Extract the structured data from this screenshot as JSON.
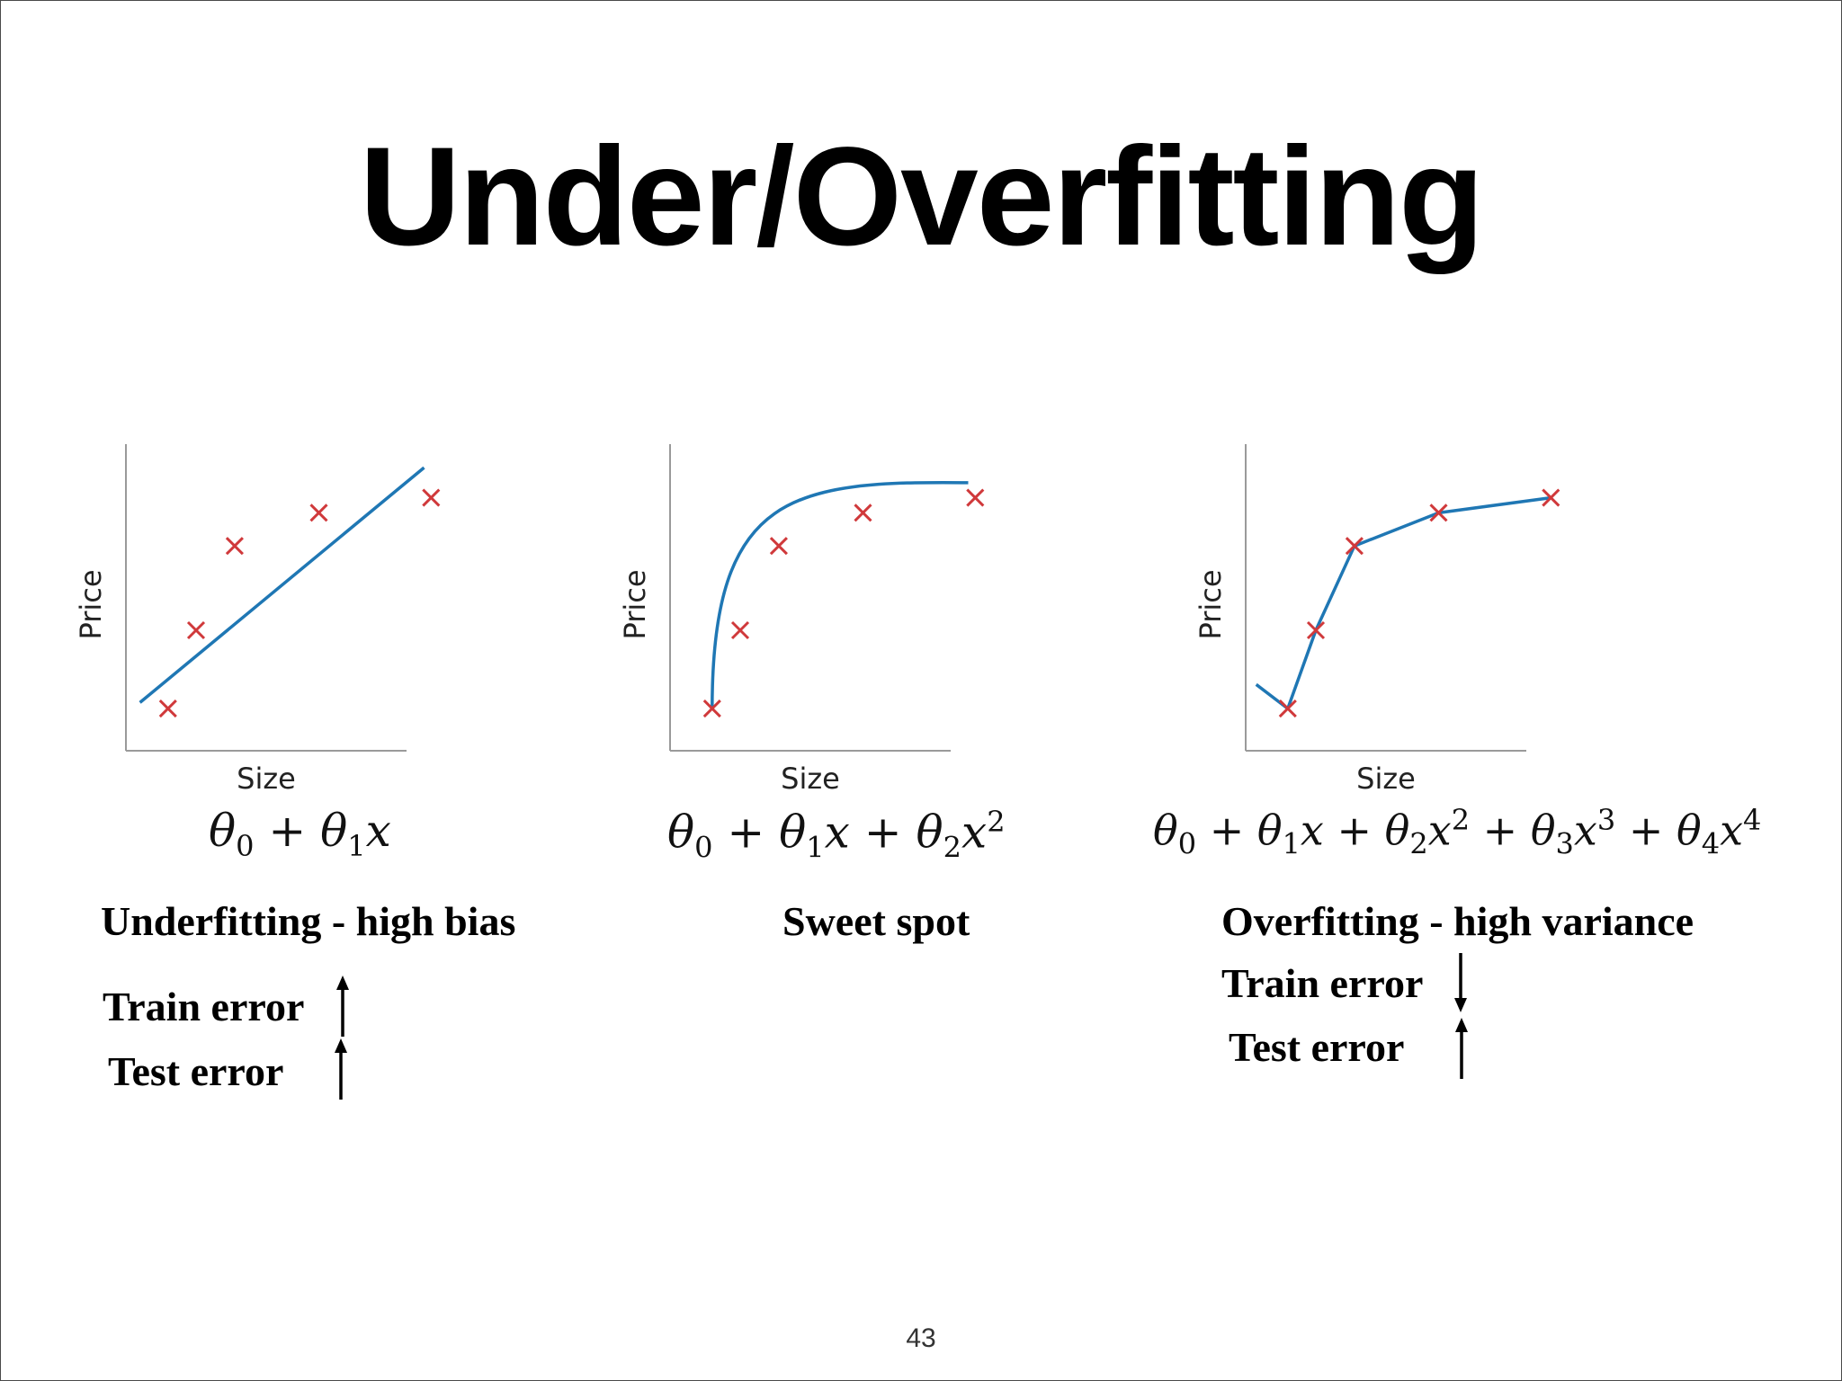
{
  "slide": {
    "title": "Under/Overfitting",
    "page_number": "43"
  },
  "colors": {
    "point": "#d0393b",
    "curve": "#1f77b4",
    "axis": "#9a9a9a"
  },
  "chart_data": [
    {
      "type": "scatter",
      "xlabel": "Size",
      "ylabel": "Price",
      "xlim": [
        0,
        10
      ],
      "ylim": [
        0,
        10
      ],
      "points": [
        [
          1.2,
          1.4
        ],
        [
          2.0,
          4.0
        ],
        [
          3.1,
          6.8
        ],
        [
          5.5,
          7.9
        ],
        [
          8.7,
          8.4
        ]
      ],
      "fit": {
        "kind": "linear",
        "x": [
          0.4,
          8.5
        ],
        "y": [
          1.6,
          9.4
        ]
      },
      "formula": "θ0 + θ1x"
    },
    {
      "type": "scatter",
      "xlabel": "Size",
      "ylabel": "Price",
      "xlim": [
        0,
        10
      ],
      "ylim": [
        0,
        10
      ],
      "points": [
        [
          1.2,
          1.4
        ],
        [
          2.0,
          4.0
        ],
        [
          3.1,
          6.8
        ],
        [
          5.5,
          7.9
        ],
        [
          8.7,
          8.4
        ]
      ],
      "fit": {
        "kind": "quadratic",
        "x": [
          1.2,
          8.5
        ],
        "y": [
          1.4,
          8.9
        ]
      },
      "formula": "θ0 + θ1x + θ2x2"
    },
    {
      "type": "scatter",
      "xlabel": "Size",
      "ylabel": "Price",
      "xlim": [
        0,
        10
      ],
      "ylim": [
        0,
        10
      ],
      "points": [
        [
          1.2,
          1.4
        ],
        [
          2.0,
          4.0
        ],
        [
          3.1,
          6.8
        ],
        [
          5.5,
          7.9
        ],
        [
          8.7,
          8.4
        ]
      ],
      "fit": {
        "kind": "piecewise",
        "x": [
          0.3,
          1.2,
          2.0,
          3.1,
          5.5,
          8.7
        ],
        "y": [
          2.2,
          1.4,
          4.0,
          6.8,
          7.9,
          8.4
        ]
      },
      "formula": "θ0 + θ1x + θ2x2 + θ3x3 + θ4x4"
    }
  ],
  "captions": {
    "left": {
      "title": "Underfitting - high bias",
      "train": "Train error",
      "test": "Test error",
      "train_arrow": "up",
      "test_arrow": "up"
    },
    "middle": {
      "title": "Sweet spot"
    },
    "right": {
      "title": "Overfitting - high variance",
      "train": "Train error",
      "test": "Test error",
      "train_arrow": "down",
      "test_arrow": "up"
    }
  }
}
